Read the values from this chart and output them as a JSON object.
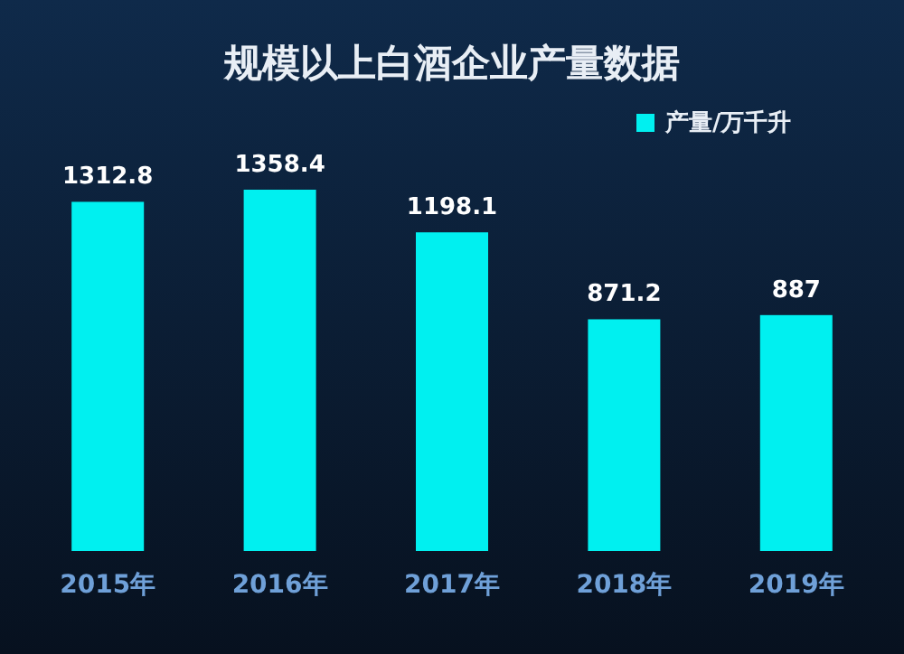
{
  "chart_data": {
    "type": "bar",
    "title": "规模以上白酒企业产量数据",
    "categories": [
      "2015年",
      "2016年",
      "2017年",
      "2018年",
      "2019年"
    ],
    "series": [
      {
        "name": "产量/万千升",
        "color": "#00f0f0",
        "values": [
          1312.8,
          1358.4,
          1198.1,
          871.2,
          887
        ]
      }
    ],
    "data_labels": true,
    "legend": "top right"
  }
}
